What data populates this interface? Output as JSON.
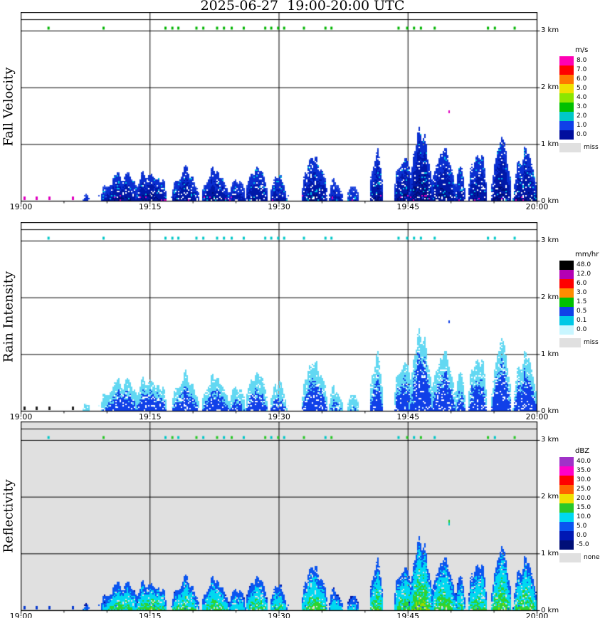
{
  "title": "2025-06-27  19:00-20:00 UTC",
  "x_axis": {
    "tick_labels": [
      {
        "minute": 0,
        "label": "19:00"
      },
      {
        "minute": 15,
        "label": "19:15"
      },
      {
        "minute": 30,
        "label": "19:30"
      },
      {
        "minute": 45,
        "label": "19:45"
      },
      {
        "minute": 60,
        "label": "20:00"
      }
    ],
    "minor_tick_minutes": 5
  },
  "y_axis": {
    "labels": [
      {
        "km": 0,
        "label": "0 km"
      },
      {
        "km": 1,
        "label": "1 km"
      },
      {
        "km": 2,
        "label": "2 km"
      },
      {
        "km": 3,
        "label": "3 km"
      }
    ],
    "range_km": [
      0,
      3.33
    ]
  },
  "chart_data": [
    {
      "type": "heatmap",
      "name": "fall_velocity",
      "ylabel": "Fall Velocity",
      "background": "#ffffff",
      "legend": {
        "unit": "m/s",
        "entries": [
          {
            "label": "8.0",
            "color": "#ff00b4"
          },
          {
            "label": "7.0",
            "color": "#ff0000"
          },
          {
            "label": "6.0",
            "color": "#ff7800"
          },
          {
            "label": "5.0",
            "color": "#f0e000"
          },
          {
            "label": "4.0",
            "color": "#8ce600"
          },
          {
            "label": "3.0",
            "color": "#00c000"
          },
          {
            "label": "2.0",
            "color": "#00c8c8"
          },
          {
            "label": "1.0",
            "color": "#1040e8"
          },
          {
            "label": "0.0",
            "color": "#000f9e"
          }
        ],
        "missing_label": "miss",
        "missing_color": "#e0e0e0"
      },
      "render": {
        "scale": 2.6,
        "inflate": 1.0,
        "bands": [
          [
            0.55,
            "#2a4fe0"
          ],
          [
            1.2,
            "#0a2fd0"
          ],
          [
            2.0,
            "#0018a8"
          ],
          [
            99,
            "#000d78"
          ]
        ],
        "speckle_cyan": "#00c0e0",
        "speckle_magenta": "#e000c0",
        "clutter_colors": [
          "#00b400"
        ],
        "surface_color": "#e000c0",
        "mid_dot_colors": [
          "#e000c0"
        ],
        "speck_color": "#2a4fe0",
        "extra_holes": 0
      }
    },
    {
      "type": "heatmap",
      "name": "rain_intensity",
      "ylabel": "Rain Intensity",
      "background": "#ffffff",
      "legend": {
        "unit": "mm/hr",
        "entries": [
          {
            "label": "48.0",
            "color": "#000000"
          },
          {
            "label": "12.0",
            "color": "#b400b4"
          },
          {
            "label": "6.0",
            "color": "#ff0000"
          },
          {
            "label": "3.0",
            "color": "#ff8c00"
          },
          {
            "label": "1.5",
            "color": "#00c000"
          },
          {
            "label": "0.5",
            "color": "#1040e8"
          },
          {
            "label": "0.1",
            "color": "#00c8e6"
          },
          {
            "label": "0.0",
            "color": "#c9f6ff"
          }
        ],
        "missing_label": "miss",
        "missing_color": "#e0e0e0"
      },
      "render": {
        "scale": 0.95,
        "inflate": 1.12,
        "bands": [
          [
            0.12,
            "#c9f6ff"
          ],
          [
            0.45,
            "#62d8f2"
          ],
          [
            1.05,
            "#1040e8"
          ],
          [
            99,
            "#00a800"
          ]
        ],
        "clutter_colors": [
          "#00c8c8"
        ],
        "surface_color": "#202020",
        "mid_dot_colors": [
          "#1040e8"
        ],
        "speck_color": "#c9f6ff",
        "extra_holes": 0.035
      }
    },
    {
      "type": "heatmap",
      "name": "reflectivity",
      "ylabel": "Reflectivity",
      "background": "#e0e0e0",
      "legend": {
        "unit": "dBZ",
        "entries": [
          {
            "label": "40.0",
            "color": "#a032c8"
          },
          {
            "label": "35.0",
            "color": "#ff00c8"
          },
          {
            "label": "30.0",
            "color": "#ff0000"
          },
          {
            "label": "25.0",
            "color": "#ff6400"
          },
          {
            "label": "20.0",
            "color": "#f0e000"
          },
          {
            "label": "15.0",
            "color": "#28c828"
          },
          {
            "label": "10.0",
            "color": "#00d8f0"
          },
          {
            "label": "5.0",
            "color": "#0a55f0"
          },
          {
            "label": "0.0",
            "color": "#0018b4"
          },
          {
            "label": "-5.0",
            "color": "#000f78"
          }
        ],
        "missing_label": "none",
        "missing_color": "#e0e0e0"
      },
      "render": {
        "scale": 16,
        "inflate": 1.0,
        "bands": [
          [
            2.5,
            "#000f9e"
          ],
          [
            6,
            "#0a55f0"
          ],
          [
            10.5,
            "#00d8f0"
          ],
          [
            14.5,
            "#2fd42f"
          ],
          [
            18,
            "#9ed800"
          ],
          [
            99,
            "#f0d000"
          ]
        ],
        "clutter_colors": [
          "#00c8c8",
          "#28c828"
        ],
        "surface_color": "#0a3cd0",
        "mid_dot_colors": [
          "#28c828",
          "#00c8c8"
        ],
        "speck_color": "#0a55f0",
        "extra_holes": 0
      }
    }
  ],
  "echo_cells": [
    [
      7.5,
      0.4,
      0.12,
      0.4
    ],
    [
      9.7,
      0.5,
      0.3,
      0.6
    ],
    [
      11.5,
      2.0,
      0.5,
      0.8
    ],
    [
      15.0,
      1.8,
      0.55,
      0.85
    ],
    [
      19.0,
      1.6,
      0.5,
      0.8
    ],
    [
      22.5,
      1.6,
      0.55,
      0.8
    ],
    [
      25.0,
      1.0,
      0.35,
      0.65
    ],
    [
      27.3,
      1.3,
      0.55,
      0.78
    ],
    [
      29.8,
      1.0,
      0.45,
      0.7
    ],
    [
      34.0,
      1.5,
      0.68,
      0.82
    ],
    [
      36.5,
      0.8,
      0.35,
      0.6
    ],
    [
      38.5,
      0.7,
      0.25,
      0.5
    ],
    [
      41.2,
      0.8,
      0.75,
      0.8
    ],
    [
      44.5,
      1.2,
      0.8,
      0.85
    ],
    [
      46.4,
      1.4,
      1.02,
      0.95
    ],
    [
      49.0,
      1.4,
      0.85,
      0.85
    ],
    [
      51.0,
      0.6,
      0.6,
      0.7
    ],
    [
      53.0,
      1.1,
      0.75,
      0.8
    ],
    [
      55.7,
      1.2,
      0.92,
      0.88
    ],
    [
      58.5,
      1.4,
      0.85,
      0.85
    ]
  ],
  "clutter_times_min": [
    3.2,
    9.6,
    16.8,
    17.6,
    18.3,
    20.4,
    21.2,
    22.8,
    23.6,
    24.5,
    25.9,
    28.4,
    29.1,
    29.9,
    30.6,
    32.9,
    35.4,
    36.1,
    43.9,
    44.9,
    45.7,
    46.5,
    48.1,
    54.3,
    55.1,
    57.4
  ],
  "surface_times_min": [
    0.4,
    1.8,
    3.3,
    6.0
  ],
  "mid_dot": {
    "minute": 49.7,
    "km": 1.55
  }
}
